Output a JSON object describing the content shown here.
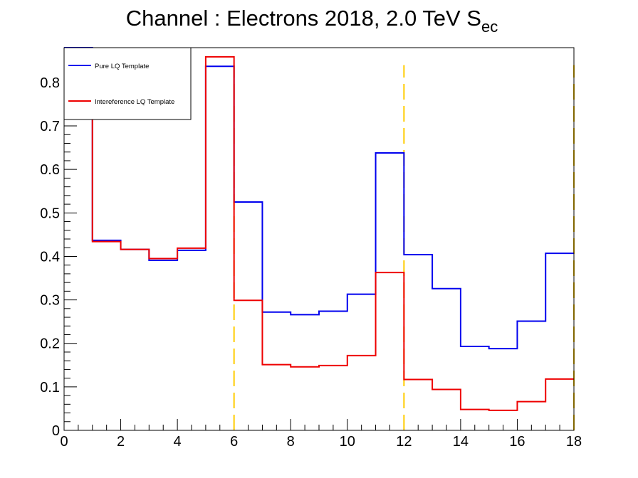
{
  "chart_data": {
    "type": "line",
    "title": "Channel : Electrons 2018, 2.0 TeV S",
    "title_subscript": "ec",
    "xlabel": "",
    "ylabel": "",
    "xlim": [
      0,
      18
    ],
    "ylim": [
      0,
      0.88
    ],
    "x_ticks": [
      0,
      2,
      4,
      6,
      8,
      10,
      12,
      14,
      16,
      18
    ],
    "y_ticks": [
      0,
      0.1,
      0.2,
      0.3,
      0.4,
      0.5,
      0.6,
      0.7,
      0.8
    ],
    "x_tick_labels": [
      "0",
      "2",
      "4",
      "6",
      "8",
      "10",
      "12",
      "14",
      "16",
      "18"
    ],
    "y_tick_labels": [
      "0",
      "0.1",
      "0.2",
      "0.3",
      "0.4",
      "0.5",
      "0.6",
      "0.7",
      "0.8"
    ],
    "bin_edges": [
      0,
      1,
      2,
      3,
      4,
      5,
      6,
      7,
      8,
      9,
      10,
      11,
      12,
      13,
      14,
      15,
      16,
      17,
      18
    ],
    "series": [
      {
        "name": "Pure LQ Template",
        "color": "#0000ee",
        "values": [
          0.895,
          0.437,
          0.416,
          0.391,
          0.414,
          0.837,
          0.525,
          0.272,
          0.266,
          0.274,
          0.313,
          0.638,
          0.404,
          0.326,
          0.193,
          0.188,
          0.251,
          0.407
        ]
      },
      {
        "name": "Intereference LQ Template",
        "color": "#ee0000",
        "values": [
          0.86,
          0.434,
          0.416,
          0.395,
          0.419,
          0.859,
          0.299,
          0.151,
          0.146,
          0.149,
          0.172,
          0.363,
          0.117,
          0.094,
          0.048,
          0.046,
          0.066,
          0.118
        ]
      }
    ],
    "vertical_lines": {
      "color": "#ffcc00",
      "style": "dashed",
      "x": [
        6,
        12,
        18
      ],
      "top": 0.84
    },
    "grid": false,
    "legend_position": "top-left"
  }
}
